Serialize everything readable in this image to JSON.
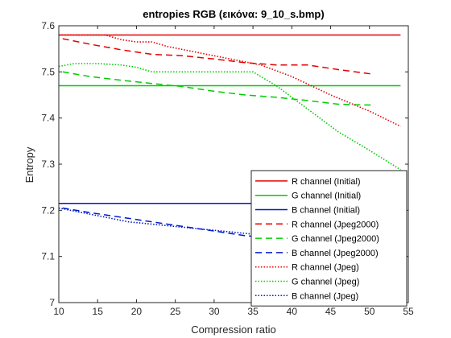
{
  "chart_data": {
    "type": "line",
    "title": "entropies RGB (εικόνα: 9_10_s.bmp)",
    "xlabel": "Compression ratio",
    "ylabel": "Entropy",
    "xlim": [
      10,
      55
    ],
    "ylim": [
      7,
      7.6
    ],
    "xticks": [
      10,
      15,
      20,
      25,
      30,
      35,
      40,
      45,
      50,
      55
    ],
    "yticks": [
      7,
      7.1,
      7.2,
      7.3,
      7.4,
      7.5,
      7.6
    ],
    "grid": false,
    "legend_position": "bottom-right",
    "series": [
      {
        "name": "R channel (Initial)",
        "color": "#e50000",
        "style": "solid",
        "x": [
          10,
          54
        ],
        "y": [
          7.58,
          7.58
        ]
      },
      {
        "name": "G channel (Initial)",
        "color": "#00cc00",
        "style": "solid",
        "x": [
          10,
          54
        ],
        "y": [
          7.47,
          7.47
        ]
      },
      {
        "name": "B channel (Initial)",
        "color": "#0019cc",
        "style": "solid",
        "x": [
          10,
          54
        ],
        "y": [
          7.215,
          7.215
        ]
      },
      {
        "name": "R channel (Jpeg2000)",
        "color": "#e50000",
        "style": "dashed",
        "x": [
          10.5,
          14,
          18,
          22,
          26,
          30,
          34,
          38,
          42,
          46,
          50.5
        ],
        "y": [
          7.572,
          7.56,
          7.548,
          7.538,
          7.535,
          7.528,
          7.52,
          7.515,
          7.515,
          7.505,
          7.495
        ]
      },
      {
        "name": "G channel (Jpeg2000)",
        "color": "#00cc00",
        "style": "dashed",
        "x": [
          10.5,
          14,
          18,
          22,
          26,
          30,
          34,
          38,
          42,
          46,
          50.5
        ],
        "y": [
          7.5,
          7.49,
          7.482,
          7.475,
          7.468,
          7.458,
          7.45,
          7.445,
          7.438,
          7.43,
          7.428
        ]
      },
      {
        "name": "B channel (Jpeg2000)",
        "color": "#0019cc",
        "style": "dashed",
        "x": [
          10.5,
          14,
          18,
          22,
          26,
          30,
          34,
          38,
          42,
          46,
          50.5
        ],
        "y": [
          7.205,
          7.195,
          7.185,
          7.175,
          7.165,
          7.155,
          7.145,
          7.14,
          7.135,
          7.128,
          7.125
        ]
      },
      {
        "name": "R channel (Jpeg)",
        "color": "#e50000",
        "style": "dotted",
        "x": [
          10,
          13,
          16,
          18,
          20,
          22,
          24,
          27,
          30,
          33,
          36,
          40,
          45,
          50,
          54
        ],
        "y": [
          7.58,
          7.58,
          7.58,
          7.57,
          7.565,
          7.565,
          7.555,
          7.545,
          7.535,
          7.525,
          7.515,
          7.49,
          7.45,
          7.415,
          7.382
        ]
      },
      {
        "name": "G channel (Jpeg)",
        "color": "#00cc00",
        "style": "dotted",
        "x": [
          10,
          12,
          15,
          18,
          20,
          22,
          25,
          28,
          32,
          35,
          38,
          42,
          46,
          50,
          54
        ],
        "y": [
          7.512,
          7.518,
          7.518,
          7.515,
          7.51,
          7.5,
          7.5,
          7.5,
          7.5,
          7.5,
          7.47,
          7.42,
          7.37,
          7.33,
          7.288
        ]
      },
      {
        "name": "B channel (Jpeg)",
        "color": "#0019cc",
        "style": "dotted",
        "x": [
          10,
          13,
          16,
          19,
          22,
          25,
          28,
          31,
          34,
          37,
          40,
          44,
          48,
          52,
          54
        ],
        "y": [
          7.205,
          7.195,
          7.185,
          7.175,
          7.17,
          7.165,
          7.16,
          7.155,
          7.15,
          7.145,
          7.135,
          7.12,
          7.1,
          7.045,
          7.02
        ]
      }
    ]
  }
}
